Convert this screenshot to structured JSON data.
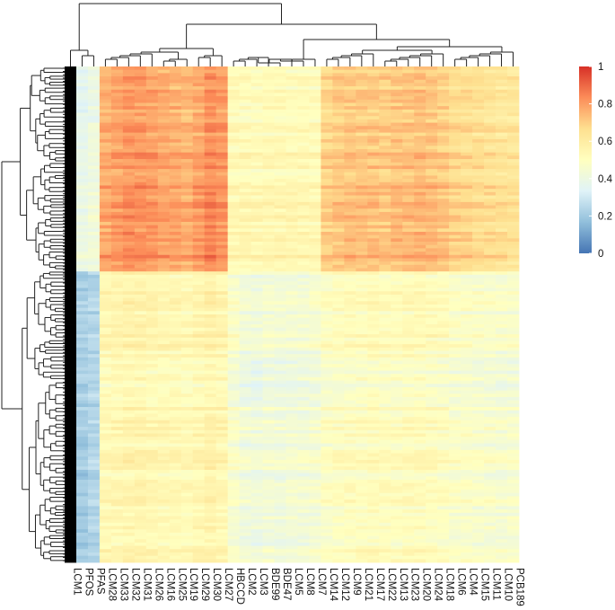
{
  "chart_data": {
    "type": "heatmap",
    "title": "",
    "columns": [
      "LCM1",
      "PFOS",
      "PFAS",
      "LCM28",
      "LCM33",
      "LCM32",
      "LCM31",
      "LCM26",
      "LCM16",
      "LCM25",
      "LCM19",
      "LCM29",
      "LCM30",
      "LCM27",
      "HBCCD",
      "LCM2",
      "LCM3",
      "BDE99",
      "BDE47",
      "LCM5",
      "LCM8",
      "LCM7",
      "LCM14",
      "LCM12",
      "LCM9",
      "LCM21",
      "LCM17",
      "LCM22",
      "LCM13",
      "LCM23",
      "LCM20",
      "LCM24",
      "LCM18",
      "LCM6",
      "LCM4",
      "LCM15",
      "LCM11",
      "LCM10",
      "PCB189"
    ],
    "column_group_means": {
      "upper_row_cluster": [
        0.0,
        0.35,
        0.38,
        0.74,
        0.76,
        0.79,
        0.78,
        0.77,
        0.75,
        0.74,
        0.73,
        0.76,
        0.8,
        0.78,
        0.5,
        0.5,
        0.49,
        0.5,
        0.5,
        0.5,
        0.5,
        0.5,
        0.66,
        0.68,
        0.69,
        0.69,
        0.69,
        0.68,
        0.7,
        0.7,
        0.71,
        0.7,
        0.68,
        0.65,
        0.64,
        0.63,
        0.62,
        0.61,
        0.6
      ],
      "lower_row_cluster": [
        0.0,
        0.22,
        0.25,
        0.55,
        0.56,
        0.57,
        0.57,
        0.56,
        0.55,
        0.55,
        0.54,
        0.56,
        0.58,
        0.56,
        0.48,
        0.44,
        0.43,
        0.45,
        0.44,
        0.45,
        0.45,
        0.46,
        0.5,
        0.51,
        0.52,
        0.52,
        0.53,
        0.52,
        0.52,
        0.53,
        0.53,
        0.52,
        0.51,
        0.49,
        0.49,
        0.48,
        0.48,
        0.47,
        0.47
      ]
    },
    "row_clusters": [
      "upper",
      "lower"
    ],
    "legend": {
      "ticks": [
        "1",
        "0.8",
        "0.6",
        "0.4",
        "0.2",
        "0"
      ],
      "tick_values": [
        1,
        0.8,
        0.6,
        0.4,
        0.2,
        0
      ],
      "colors": [
        "#d73027",
        "#fc8d59",
        "#fee090",
        "#ffffbf",
        "#e0f3f8",
        "#91bfdb",
        "#4575b4"
      ],
      "position": "top-right"
    },
    "range": [
      0,
      1
    ],
    "dendrogram": {
      "rows": true,
      "columns": true
    }
  }
}
